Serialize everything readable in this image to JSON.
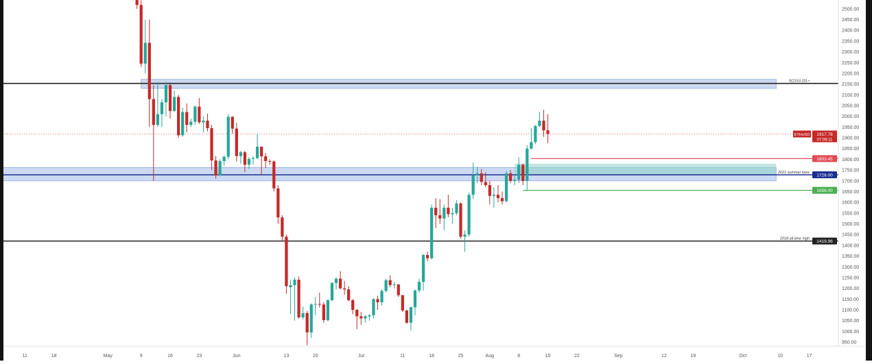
{
  "chart_data": {
    "type": "candlestick",
    "symbol": "ETHUSD",
    "colors": {
      "up": "#26a69a",
      "down": "#c62828",
      "zone": "#a9c1ea",
      "level_line": "#222222",
      "support_line": "#1b2d8f",
      "entry_box": "#8fd3c8",
      "target_line": "#e04b55",
      "stop_line": "#4caf50",
      "price_line": "#e06b6b"
    },
    "xlim": [
      "2022-04-05",
      "2022-10-24"
    ],
    "ylim": [
      931,
      2541
    ],
    "y_ticks": [
      950,
      1000,
      1050,
      1100,
      1150,
      1200,
      1250,
      1300,
      1350,
      1400,
      1450,
      1500,
      1550,
      1600,
      1650,
      1700,
      1750,
      1800,
      1850,
      1900,
      1950,
      2000,
      2050,
      2100,
      2150,
      2200,
      2250,
      2300,
      2350,
      2400,
      2450,
      2500
    ],
    "x_ticks": [
      {
        "date": "2022-04-11",
        "label": "11"
      },
      {
        "date": "2022-04-18",
        "label": "18"
      },
      {
        "date": "2022-05-01",
        "label": "May"
      },
      {
        "date": "2022-05-09",
        "label": "9"
      },
      {
        "date": "2022-05-16",
        "label": "16"
      },
      {
        "date": "2022-05-23",
        "label": "23"
      },
      {
        "date": "2022-06-01",
        "label": "Jun"
      },
      {
        "date": "2022-06-13",
        "label": "13"
      },
      {
        "date": "2022-06-20",
        "label": "20"
      },
      {
        "date": "2022-07-01",
        "label": "Jul"
      },
      {
        "date": "2022-07-11",
        "label": "11"
      },
      {
        "date": "2022-07-18",
        "label": "18"
      },
      {
        "date": "2022-07-25",
        "label": "25"
      },
      {
        "date": "2022-08-01",
        "label": "Aug"
      },
      {
        "date": "2022-08-08",
        "label": "8"
      },
      {
        "date": "2022-08-15",
        "label": "15"
      },
      {
        "date": "2022-08-22",
        "label": "22"
      },
      {
        "date": "2022-09-01",
        "label": "Sep"
      },
      {
        "date": "2022-09-12",
        "label": "12"
      },
      {
        "date": "2022-09-19",
        "label": "19"
      },
      {
        "date": "2022-10-01",
        "label": "Oct"
      },
      {
        "date": "2022-10-10",
        "label": "10"
      },
      {
        "date": "2022-10-17",
        "label": "17"
      }
    ],
    "candles": [
      [
        "2022-05-08",
        2640,
        2660,
        2500,
        2518
      ],
      [
        "2022-05-09",
        2518,
        2540,
        2230,
        2245
      ],
      [
        "2022-05-10",
        2245,
        2450,
        2200,
        2342
      ],
      [
        "2022-05-11",
        2342,
        2450,
        1950,
        2080
      ],
      [
        "2022-05-12",
        2080,
        2145,
        1700,
        1960
      ],
      [
        "2022-05-13",
        1960,
        2160,
        1950,
        2010
      ],
      [
        "2022-05-14",
        2010,
        2080,
        1950,
        2065
      ],
      [
        "2022-05-15",
        2065,
        2160,
        2000,
        2145
      ],
      [
        "2022-05-16",
        2145,
        2150,
        1990,
        2025
      ],
      [
        "2022-05-17",
        2025,
        2120,
        2020,
        2090
      ],
      [
        "2022-05-18",
        2090,
        2100,
        1900,
        1912
      ],
      [
        "2022-05-19",
        1912,
        2040,
        1905,
        2020
      ],
      [
        "2022-05-20",
        2020,
        2060,
        1925,
        1960
      ],
      [
        "2022-05-21",
        1960,
        1990,
        1950,
        1975
      ],
      [
        "2022-05-22",
        1975,
        2050,
        1960,
        2045
      ],
      [
        "2022-05-23",
        2045,
        2085,
        1965,
        1972
      ],
      [
        "2022-05-24",
        1972,
        2000,
        1925,
        1980
      ],
      [
        "2022-05-25",
        1980,
        2012,
        1930,
        1945
      ],
      [
        "2022-05-26",
        1945,
        1960,
        1750,
        1795
      ],
      [
        "2022-05-27",
        1795,
        1815,
        1710,
        1725
      ],
      [
        "2022-05-28",
        1725,
        1800,
        1720,
        1792
      ],
      [
        "2022-05-29",
        1792,
        1818,
        1770,
        1812
      ],
      [
        "2022-05-30",
        1812,
        2010,
        1800,
        1998
      ],
      [
        "2022-05-31",
        1998,
        2000,
        1920,
        1943
      ],
      [
        "2022-06-01",
        1943,
        1970,
        1790,
        1815
      ],
      [
        "2022-06-02",
        1815,
        1840,
        1780,
        1833
      ],
      [
        "2022-06-03",
        1833,
        1840,
        1740,
        1775
      ],
      [
        "2022-06-04",
        1775,
        1810,
        1755,
        1802
      ],
      [
        "2022-06-05",
        1802,
        1815,
        1775,
        1806
      ],
      [
        "2022-06-06",
        1806,
        1920,
        1800,
        1859
      ],
      [
        "2022-06-07",
        1859,
        1860,
        1730,
        1814
      ],
      [
        "2022-06-08",
        1814,
        1830,
        1760,
        1792
      ],
      [
        "2022-06-09",
        1792,
        1800,
        1775,
        1790
      ],
      [
        "2022-06-10",
        1790,
        1795,
        1650,
        1665
      ],
      [
        "2022-06-11",
        1665,
        1680,
        1500,
        1530
      ],
      [
        "2022-06-12",
        1530,
        1540,
        1420,
        1440
      ],
      [
        "2022-06-13",
        1440,
        1450,
        1175,
        1210
      ],
      [
        "2022-06-14",
        1205,
        1240,
        1080,
        1215
      ],
      [
        "2022-06-15",
        1215,
        1250,
        1050,
        1240
      ],
      [
        "2022-06-16",
        1240,
        1255,
        1060,
        1065
      ],
      [
        "2022-06-17",
        1065,
        1115,
        1055,
        1085
      ],
      [
        "2022-06-18",
        1085,
        1095,
        935,
        995
      ],
      [
        "2022-06-19",
        995,
        1130,
        970,
        1125
      ],
      [
        "2022-06-20",
        1125,
        1160,
        1075,
        1127
      ],
      [
        "2022-06-21",
        1127,
        1180,
        1110,
        1125
      ],
      [
        "2022-06-22",
        1125,
        1135,
        1040,
        1052
      ],
      [
        "2022-06-23",
        1052,
        1150,
        1045,
        1145
      ],
      [
        "2022-06-24",
        1145,
        1230,
        1140,
        1225
      ],
      [
        "2022-06-25",
        1225,
        1250,
        1195,
        1245
      ],
      [
        "2022-06-26",
        1245,
        1280,
        1195,
        1200
      ],
      [
        "2022-06-27",
        1200,
        1235,
        1170,
        1195
      ],
      [
        "2022-06-28",
        1195,
        1210,
        1140,
        1145
      ],
      [
        "2022-06-29",
        1145,
        1150,
        1080,
        1100
      ],
      [
        "2022-06-30",
        1100,
        1105,
        1010,
        1070
      ],
      [
        "2022-07-01",
        1070,
        1090,
        1030,
        1060
      ],
      [
        "2022-07-02",
        1060,
        1075,
        1040,
        1070
      ],
      [
        "2022-07-03",
        1070,
        1080,
        1050,
        1075
      ],
      [
        "2022-07-04",
        1075,
        1155,
        1060,
        1150
      ],
      [
        "2022-07-05",
        1150,
        1165,
        1100,
        1135
      ],
      [
        "2022-07-06",
        1135,
        1195,
        1120,
        1188
      ],
      [
        "2022-07-07",
        1188,
        1245,
        1180,
        1238
      ],
      [
        "2022-07-08",
        1238,
        1260,
        1205,
        1215
      ],
      [
        "2022-07-09",
        1215,
        1230,
        1200,
        1218
      ],
      [
        "2022-07-10",
        1218,
        1220,
        1160,
        1168
      ],
      [
        "2022-07-11",
        1168,
        1170,
        1090,
        1097
      ],
      [
        "2022-07-12",
        1097,
        1100,
        1035,
        1040
      ],
      [
        "2022-07-13",
        1040,
        1115,
        1005,
        1112
      ],
      [
        "2022-07-14",
        1112,
        1195,
        1075,
        1190
      ],
      [
        "2022-07-15",
        1190,
        1245,
        1180,
        1230
      ],
      [
        "2022-07-16",
        1230,
        1360,
        1190,
        1355
      ],
      [
        "2022-07-17",
        1355,
        1370,
        1325,
        1340
      ],
      [
        "2022-07-18",
        1340,
        1590,
        1335,
        1575
      ],
      [
        "2022-07-19",
        1575,
        1620,
        1480,
        1540
      ],
      [
        "2022-07-20",
        1540,
        1615,
        1500,
        1525
      ],
      [
        "2022-07-21",
        1525,
        1590,
        1470,
        1575
      ],
      [
        "2022-07-22",
        1575,
        1635,
        1530,
        1545
      ],
      [
        "2022-07-23",
        1545,
        1575,
        1500,
        1550
      ],
      [
        "2022-07-24",
        1550,
        1610,
        1540,
        1595
      ],
      [
        "2022-07-25",
        1595,
        1600,
        1430,
        1440
      ],
      [
        "2022-07-26",
        1440,
        1470,
        1370,
        1450
      ],
      [
        "2022-07-27",
        1450,
        1645,
        1440,
        1635
      ],
      [
        "2022-07-28",
        1635,
        1785,
        1615,
        1725
      ],
      [
        "2022-07-29",
        1725,
        1765,
        1690,
        1735
      ],
      [
        "2022-07-30",
        1735,
        1755,
        1680,
        1695
      ],
      [
        "2022-07-31",
        1695,
        1740,
        1670,
        1680
      ],
      [
        "2022-08-01",
        1680,
        1700,
        1590,
        1630
      ],
      [
        "2022-08-02",
        1630,
        1670,
        1575,
        1635
      ],
      [
        "2022-08-03",
        1635,
        1680,
        1600,
        1620
      ],
      [
        "2022-08-04",
        1620,
        1650,
        1590,
        1605
      ],
      [
        "2022-08-05",
        1605,
        1745,
        1600,
        1735
      ],
      [
        "2022-08-06",
        1735,
        1750,
        1690,
        1700
      ],
      [
        "2022-08-07",
        1700,
        1730,
        1680,
        1705
      ],
      [
        "2022-08-08",
        1705,
        1810,
        1690,
        1775
      ],
      [
        "2022-08-09",
        1775,
        1780,
        1680,
        1700
      ],
      [
        "2022-08-10",
        1700,
        1865,
        1655,
        1850
      ],
      [
        "2022-08-11",
        1850,
        1945,
        1845,
        1880
      ],
      [
        "2022-08-12",
        1880,
        1960,
        1870,
        1955
      ],
      [
        "2022-08-13",
        1955,
        2020,
        1950,
        1980
      ],
      [
        "2022-08-14",
        1980,
        2030,
        1905,
        1935
      ],
      [
        "2022-08-15",
        1935,
        2010,
        1875,
        1918
      ]
    ],
    "zones": [
      {
        "from": "2022-05-09",
        "to": "2022-10-09",
        "low": 2130,
        "high": 2172
      },
      {
        "from": "2022-04-05",
        "to": "2022-10-09",
        "low": 1700,
        "high": 1762
      }
    ],
    "entry_box": {
      "from": "2022-08-07",
      "to": "2022-10-09",
      "low": 1728,
      "high": 1780
    },
    "levels": [
      {
        "price": 2153.2,
        "label": "0(2153.20) •",
        "kind": "level_line",
        "from": "2022-04-05"
      },
      {
        "price": 1419.96,
        "label": "2018 all time high",
        "tag": "1419.96",
        "kind": "level_line",
        "from": "2022-04-05"
      },
      {
        "price": 1728.0,
        "label": "2021 summer lows",
        "tag": "1728.00",
        "kind": "support_line",
        "from": "2022-04-05"
      },
      {
        "price": 1803.45,
        "tag": "1803.45",
        "kind": "target_line",
        "from": "2022-08-11"
      },
      {
        "price": 1656.0,
        "tag": "1656.00",
        "kind": "stop_line",
        "from": "2022-08-09"
      }
    ],
    "last_price": {
      "price": 1917.78,
      "label": "1917.78",
      "countdown": "07:09:11",
      "symbol_tag": "ETHUSD"
    }
  }
}
